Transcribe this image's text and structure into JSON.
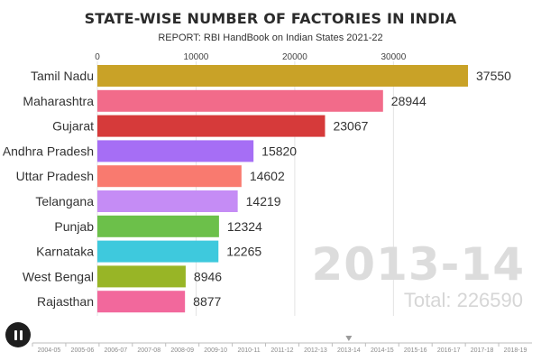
{
  "header": {
    "title": "STATE-WISE NUMBER OF FACTORIES IN INDIA",
    "subtitle": "REPORT: RBI HandBook on Indian States 2021-22"
  },
  "chart_data": {
    "type": "bar",
    "orientation": "horizontal",
    "title": "STATE-WISE NUMBER OF FACTORIES IN INDIA",
    "subtitle": "REPORT: RBI HandBook on Indian States 2021-22",
    "categories": [
      "Tamil Nadu",
      "Maharashtra",
      "Gujarat",
      "Andhra Pradesh",
      "Uttar Pradesh",
      "Telangana",
      "Punjab",
      "Karnataka",
      "West Bengal",
      "Rajasthan"
    ],
    "values": [
      37550,
      28944,
      23067,
      15820,
      14602,
      14219,
      12324,
      12265,
      8946,
      8877
    ],
    "colors": [
      "#c9a227",
      "#f26b8a",
      "#d63a3a",
      "#a66ef5",
      "#f97a6f",
      "#c58cf5",
      "#6cc04a",
      "#3ec9dd",
      "#98b526",
      "#f2689c"
    ],
    "xlim": [
      0,
      40000
    ],
    "xticks": [
      0,
      10000,
      20000,
      30000
    ],
    "xtick_labels": [
      "0",
      "10000",
      "20000",
      "30000"
    ],
    "xlabel": "",
    "ylabel": "",
    "grid": true,
    "year": "2013-14",
    "total_label": "Total: 226590"
  },
  "timeline": {
    "years": [
      "2004-05",
      "2005-06",
      "2006-07",
      "2007-08",
      "2008-09",
      "2009-10",
      "2010-11",
      "2011-12",
      "2012-13",
      "2013-14",
      "2014-15",
      "2015-16",
      "2016-17",
      "2017-18",
      "2018-19"
    ],
    "current": "2013-14"
  },
  "controls": {
    "play_state": "pause-icon"
  }
}
